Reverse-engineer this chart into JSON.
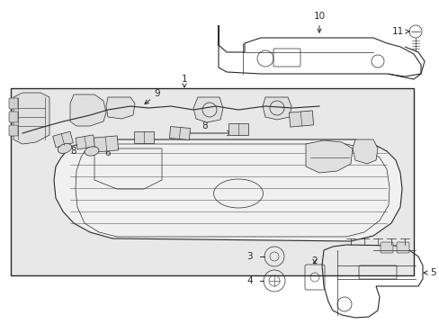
{
  "bg_color": "#ffffff",
  "box_bg": "#e8e8e8",
  "lc": "#2a2a2a",
  "figsize": [
    4.89,
    3.6
  ],
  "dpi": 100
}
